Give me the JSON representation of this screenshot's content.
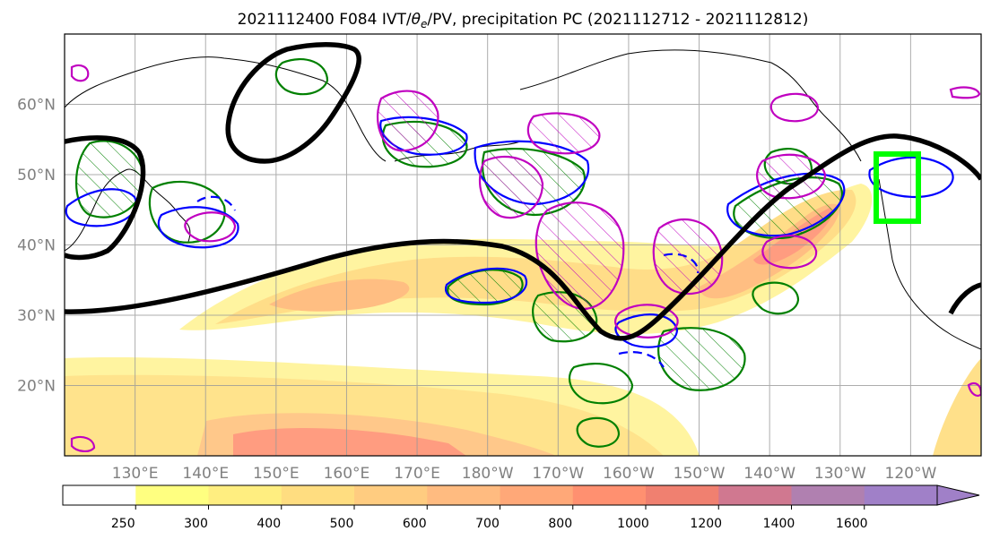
{
  "title": {
    "text_prefix": "2021112400 F084 IVT/",
    "theta_symbol": "θ",
    "theta_sub": "e",
    "text_suffix": "/PV, precipitation PC (2021112712 - 2021112812)"
  },
  "map": {
    "lon_range": [
      120,
      250
    ],
    "lat_range": [
      10,
      70
    ],
    "lat_ticks": [
      {
        "value": 20,
        "label": "20°N"
      },
      {
        "value": 30,
        "label": "30°N"
      },
      {
        "value": 40,
        "label": "40°N"
      },
      {
        "value": 50,
        "label": "50°N"
      },
      {
        "value": 60,
        "label": "60°N"
      }
    ],
    "lon_ticks": [
      {
        "value": 130,
        "label": "130°E"
      },
      {
        "value": 140,
        "label": "140°E"
      },
      {
        "value": 150,
        "label": "150°E"
      },
      {
        "value": 160,
        "label": "160°E"
      },
      {
        "value": 170,
        "label": "170°E"
      },
      {
        "value": 180,
        "label": "180°W"
      },
      {
        "value": 190,
        "label": "170°W"
      },
      {
        "value": 200,
        "label": "160°W"
      },
      {
        "value": 210,
        "label": "150°W"
      },
      {
        "value": 220,
        "label": "140°W"
      },
      {
        "value": 230,
        "label": "130°W"
      },
      {
        "value": 240,
        "label": "120°W"
      }
    ],
    "grid": true,
    "colors": {
      "pv_contour": "#000000",
      "theta_e": "#008000",
      "ivt_anom": "#0000ff",
      "precip": "#c000c0",
      "target_box": "#00ff00"
    }
  },
  "colorbar": {
    "levels": [
      "250",
      "300",
      "400",
      "500",
      "600",
      "700",
      "800",
      "1000",
      "1200",
      "1400",
      "1600"
    ],
    "colors": [
      "#ffffff",
      "#ffff80",
      "#ffee80",
      "#ffdd80",
      "#ffcc80",
      "#ffbb80",
      "#ffa878",
      "#ff9070",
      "#f08070",
      "#d07890",
      "#b080b0",
      "#a080c8"
    ],
    "extend": "max"
  }
}
